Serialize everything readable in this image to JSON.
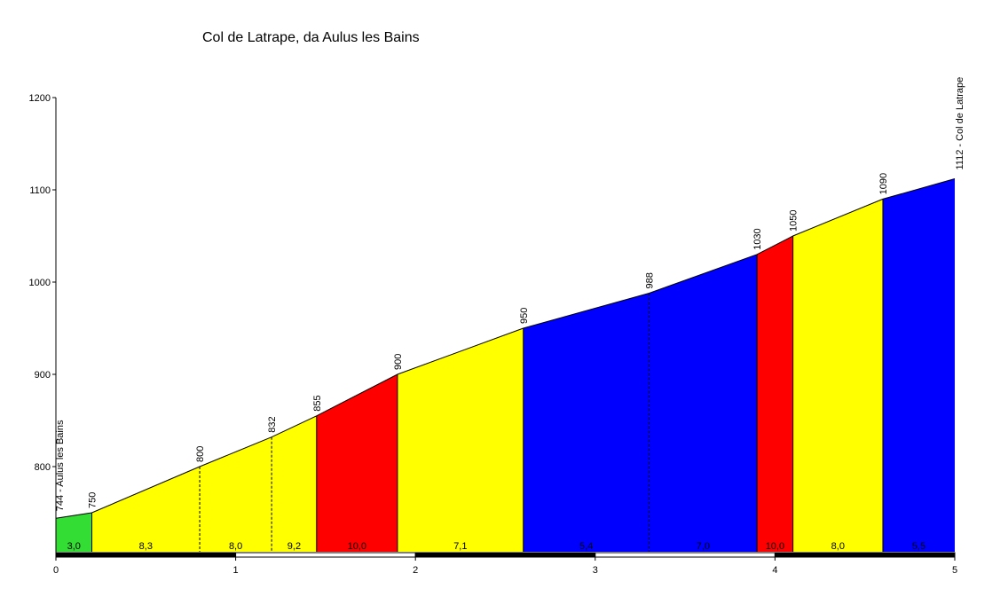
{
  "chart_data": {
    "type": "area",
    "title": "Col de Latrape, da Aulus les Bains",
    "xlabel": "",
    "ylabel": "",
    "xlim": [
      0,
      5
    ],
    "ylim": [
      750,
      1200
    ],
    "x_ticks": [
      0,
      1,
      2,
      3,
      4,
      5
    ],
    "y_ticks": [
      800,
      900,
      1000,
      1100,
      1200
    ],
    "grid": false,
    "points": [
      {
        "x": 0.0,
        "y": 744,
        "label": "744 - Aulus les Bains"
      },
      {
        "x": 0.2,
        "y": 750,
        "label": "750"
      },
      {
        "x": 0.8,
        "y": 800,
        "label": "800"
      },
      {
        "x": 1.2,
        "y": 832,
        "label": "832"
      },
      {
        "x": 1.45,
        "y": 855,
        "label": "855"
      },
      {
        "x": 1.9,
        "y": 900,
        "label": "900"
      },
      {
        "x": 2.6,
        "y": 950,
        "label": "950"
      },
      {
        "x": 3.3,
        "y": 988,
        "label": "988"
      },
      {
        "x": 3.9,
        "y": 1030,
        "label": "1030"
      },
      {
        "x": 4.1,
        "y": 1050,
        "label": "1050"
      },
      {
        "x": 4.6,
        "y": 1090,
        "label": "1090"
      },
      {
        "x": 5.0,
        "y": 1112,
        "label": "1112 - Col de Latrape"
      }
    ],
    "segments": [
      {
        "x0": 0.0,
        "x1": 0.2,
        "gradient": "3,0",
        "color": "#33dd33",
        "divider": "solid"
      },
      {
        "x0": 0.2,
        "x1": 0.8,
        "gradient": "8,3",
        "color": "#ffff00",
        "divider": "dashed"
      },
      {
        "x0": 0.8,
        "x1": 1.2,
        "gradient": "8,0",
        "color": "#ffff00",
        "divider": "dashed"
      },
      {
        "x0": 1.2,
        "x1": 1.45,
        "gradient": "9,2",
        "color": "#ffff00",
        "divider": "solid"
      },
      {
        "x0": 1.45,
        "x1": 1.9,
        "gradient": "10,0",
        "color": "#ff0000",
        "divider": "solid"
      },
      {
        "x0": 1.9,
        "x1": 2.6,
        "gradient": "7,1",
        "color": "#ffff00",
        "divider": "solid"
      },
      {
        "x0": 2.6,
        "x1": 3.3,
        "gradient": "5,4",
        "color": "#0000ff",
        "divider": "dashed"
      },
      {
        "x0": 3.3,
        "x1": 3.9,
        "gradient": "7,0",
        "color": "#0000ff",
        "divider": "solid"
      },
      {
        "x0": 3.9,
        "x1": 4.1,
        "gradient": "10,0",
        "color": "#ff0000",
        "divider": "solid"
      },
      {
        "x0": 4.1,
        "x1": 4.6,
        "gradient": "8,0",
        "color": "#ffff00",
        "divider": "solid"
      },
      {
        "x0": 4.6,
        "x1": 5.0,
        "gradient": "5,5",
        "color": "#0000ff",
        "divider": "none"
      }
    ]
  }
}
